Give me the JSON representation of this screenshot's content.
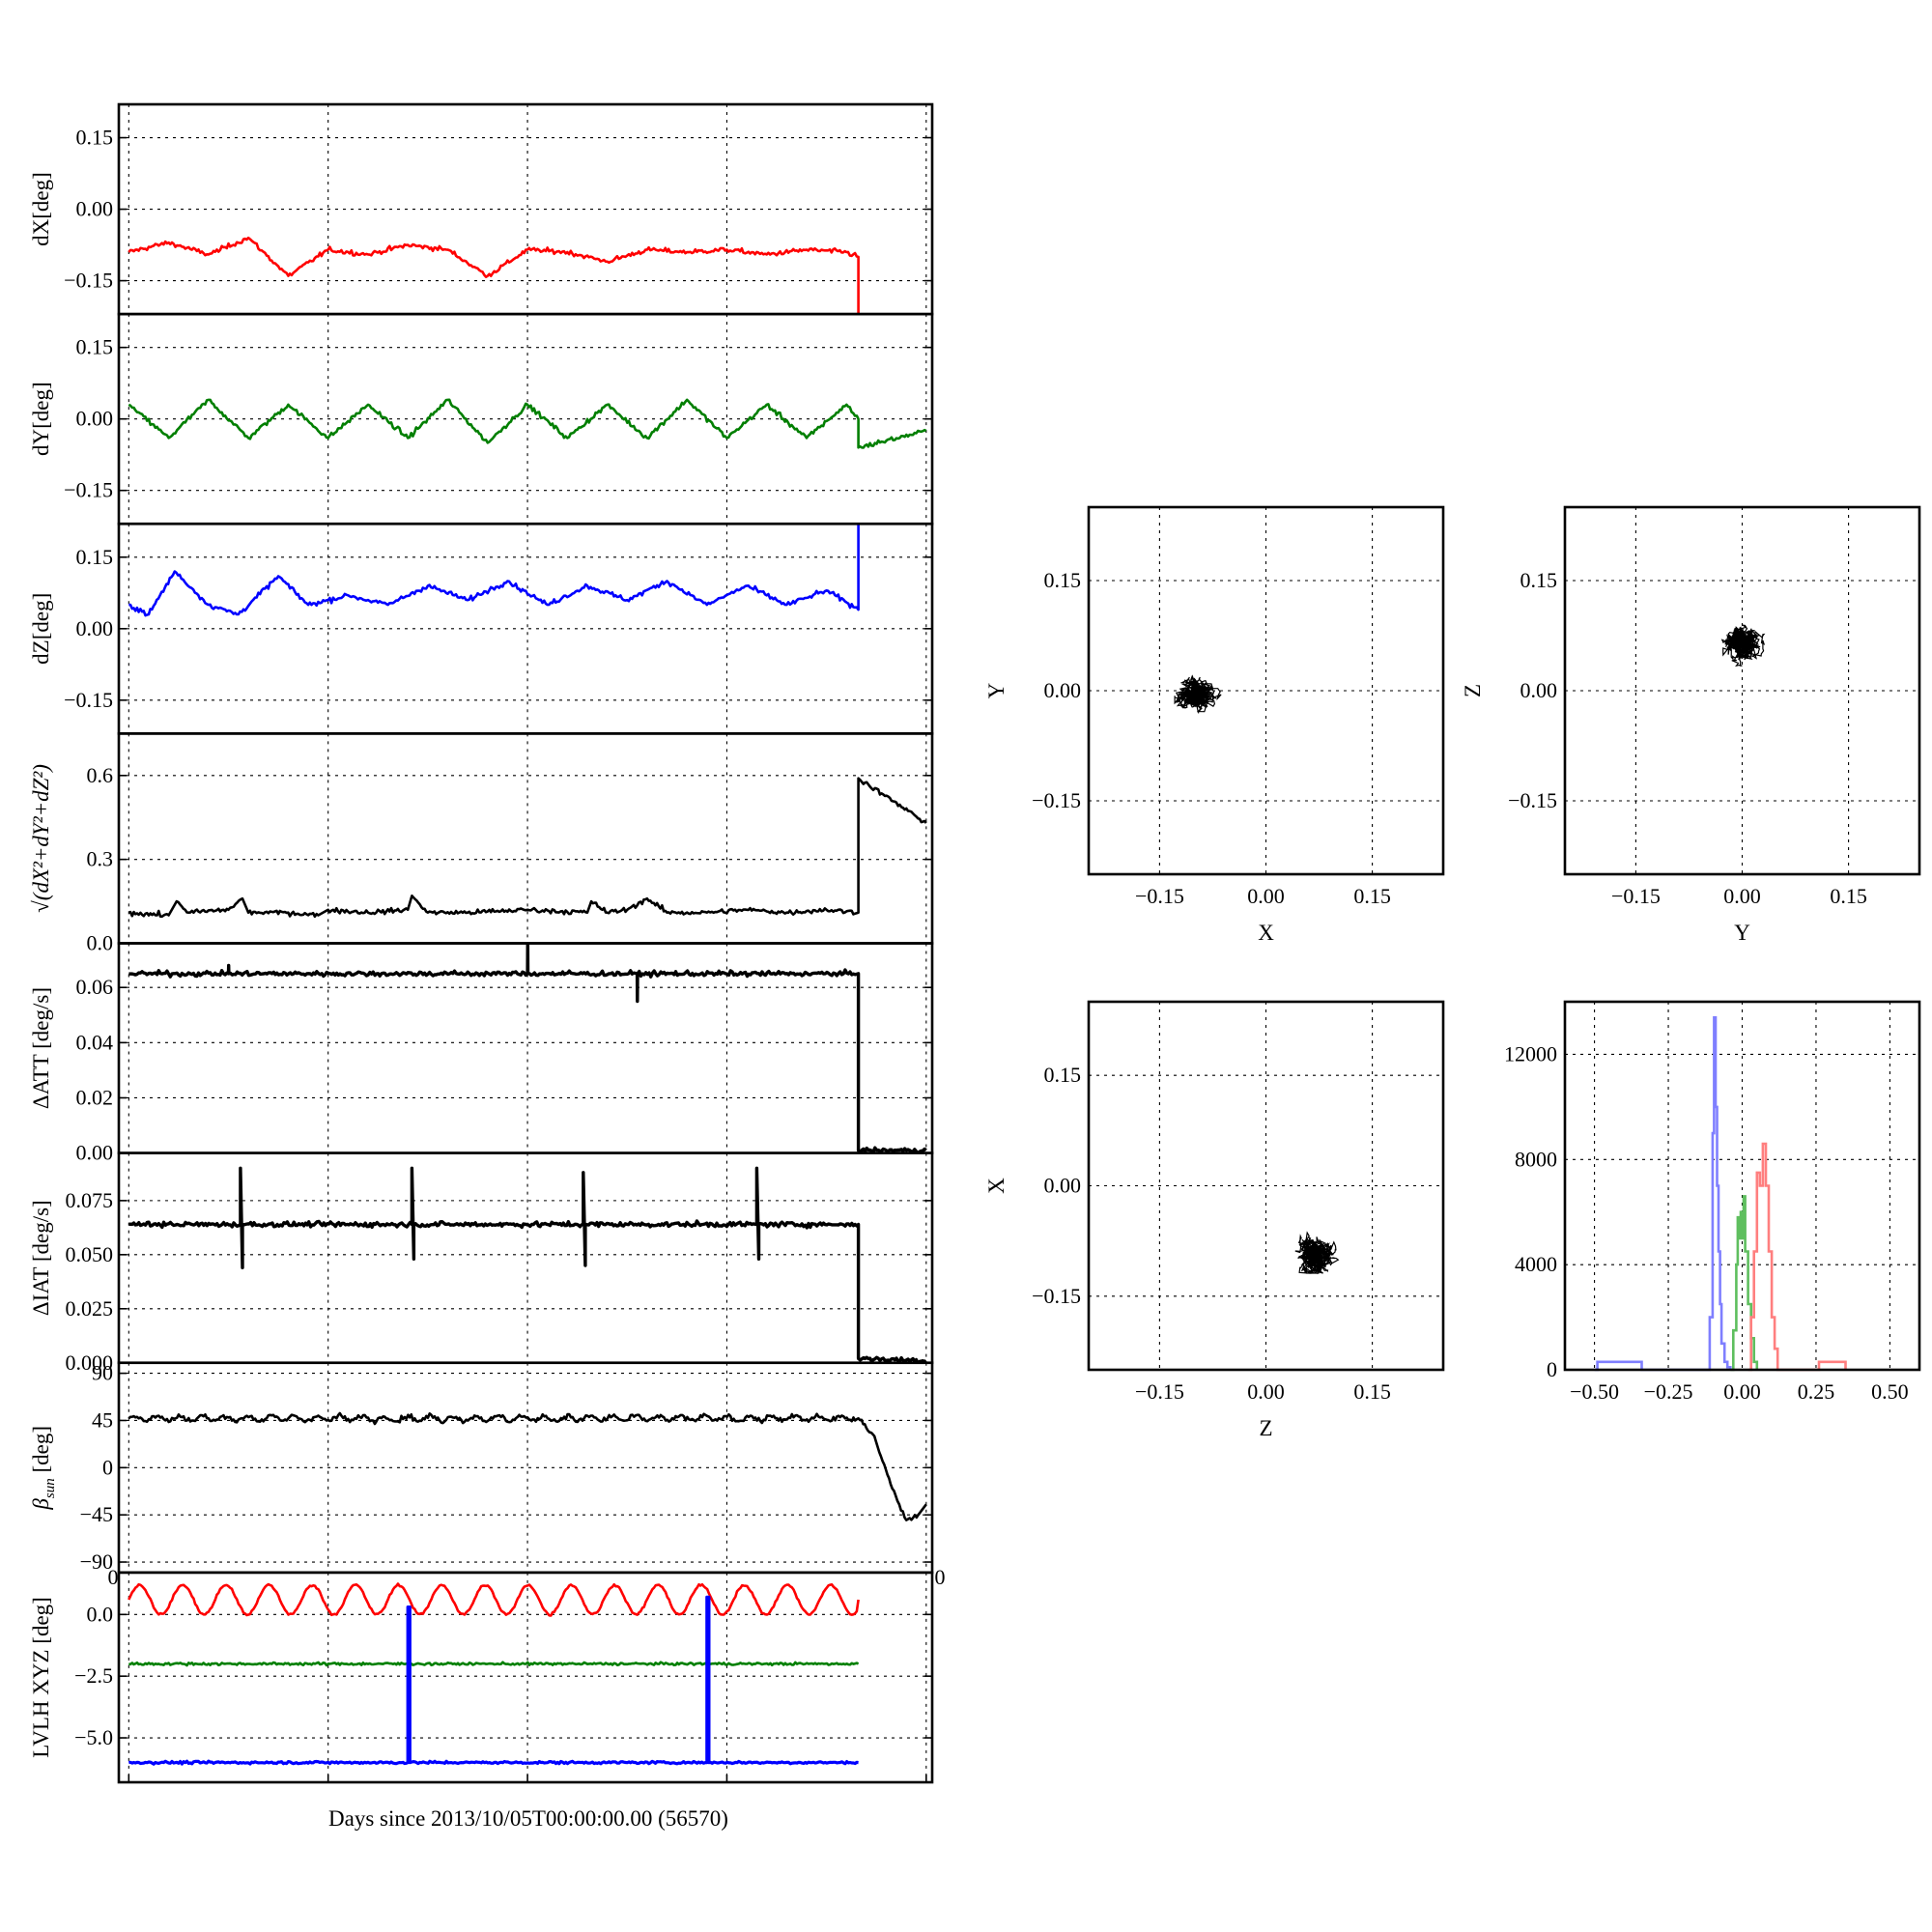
{
  "chart_data": {
    "figure": {
      "type": "multi-panel",
      "xlabel": "Days since 2013/10/05T00:00:00.00 (56570)"
    },
    "timeseries": [
      {
        "id": "dx",
        "type": "line",
        "ylabel": "dX[deg]",
        "ylim": [
          -0.22,
          0.22
        ],
        "yticks": [
          0.15,
          0.0,
          -0.15
        ],
        "ytick_labels": [
          "0.15",
          "0.00",
          "−0.15"
        ],
        "series": [
          {
            "color": "#ff0000",
            "t": [
              0,
              2,
              4,
              6,
              8,
              10,
              12,
              14,
              16,
              18,
              20,
              22,
              24,
              26,
              28,
              30,
              32,
              34,
              36,
              36.6,
              36.6
            ],
            "y": [
              -0.09,
              -0.07,
              -0.095,
              -0.06,
              -0.14,
              -0.085,
              -0.095,
              -0.075,
              -0.085,
              -0.14,
              -0.085,
              -0.09,
              -0.11,
              -0.085,
              -0.09,
              -0.085,
              -0.095,
              -0.085,
              -0.09,
              -0.1,
              -0.22
            ]
          }
        ]
      },
      {
        "id": "dy",
        "type": "line",
        "ylabel": "dY[deg]",
        "ylim": [
          -0.22,
          0.22
        ],
        "yticks": [
          0.15,
          0.0,
          -0.15
        ],
        "ytick_labels": [
          "0.15",
          "0.00",
          "−0.15"
        ],
        "series": [
          {
            "color": "#007f00",
            "t": [
              0,
              2,
              4,
              6,
              8,
              10,
              12,
              14,
              16,
              18,
              20,
              22,
              24,
              26,
              28,
              30,
              32,
              34,
              36,
              36.6,
              36.6,
              40
            ],
            "y": [
              0.03,
              -0.04,
              0.04,
              -0.04,
              0.03,
              -0.04,
              0.03,
              -0.04,
              0.04,
              -0.05,
              0.03,
              -0.04,
              0.03,
              -0.04,
              0.04,
              -0.04,
              0.03,
              -0.04,
              0.03,
              0.0,
              -0.06,
              -0.025
            ]
          }
        ]
      },
      {
        "id": "dz",
        "type": "line",
        "ylabel": "dZ[deg]",
        "ylim": [
          -0.22,
          0.22
        ],
        "yticks": [
          0.15,
          0.0,
          -0.15
        ],
        "ytick_labels": [
          "0.15",
          "0.00",
          "−0.15"
        ],
        "series": [
          {
            "color": "#0000ff",
            "t": [
              0,
              1,
              2.3,
              4,
              5.5,
              7.5,
              9,
              11,
              13,
              15,
              17,
              19,
              21,
              23,
              25,
              27,
              29,
              31,
              33,
              35,
              36.6,
              36.6
            ],
            "y": [
              0.05,
              0.03,
              0.12,
              0.05,
              0.03,
              0.11,
              0.05,
              0.07,
              0.05,
              0.09,
              0.06,
              0.1,
              0.05,
              0.09,
              0.06,
              0.1,
              0.05,
              0.09,
              0.05,
              0.08,
              0.04,
              0.22
            ]
          }
        ]
      },
      {
        "id": "dr",
        "type": "line",
        "ylabel": "√(dX²+dY²+dZ²)",
        "ylim": [
          0.0,
          0.75
        ],
        "yticks": [
          0.6,
          0.3,
          0.0
        ],
        "ytick_labels": [
          "0.6",
          "0.3",
          "0.0"
        ],
        "series": [
          {
            "color": "#000000",
            "t": [
              0,
              2,
              2.4,
              3,
              5,
              5.7,
              6,
              8,
              9.5,
              10,
              12,
              14,
              14.2,
              15,
              17,
              20,
              23,
              23.2,
              24,
              25,
              26,
              27,
              29,
              31,
              33,
              35,
              36.6,
              36.6,
              40
            ],
            "y": [
              0.11,
              0.1,
              0.15,
              0.11,
              0.12,
              0.16,
              0.11,
              0.11,
              0.1,
              0.12,
              0.11,
              0.12,
              0.17,
              0.11,
              0.11,
              0.12,
              0.11,
              0.15,
              0.11,
              0.12,
              0.16,
              0.11,
              0.11,
              0.12,
              0.11,
              0.12,
              0.11,
              0.59,
              0.43
            ]
          }
        ]
      },
      {
        "id": "datt",
        "type": "line",
        "ylabel": "ΔATT [deg/s]",
        "ylim": [
          0.0,
          0.076
        ],
        "yticks": [
          0.06,
          0.04,
          0.02,
          0.0
        ],
        "ytick_labels": [
          "0.06",
          "0.04",
          "0.02",
          "0.00"
        ],
        "series": [
          {
            "color": "#000000",
            "t": [
              0,
              5,
              5.01,
              5.02,
              20,
              20.01,
              20.02,
              25.5,
              25.51,
              25.52,
              36.6,
              36.6,
              40
            ],
            "y": [
              0.065,
              0.065,
              0.068,
              0.065,
              0.065,
              0.078,
              0.065,
              0.065,
              0.055,
              0.065,
              0.065,
              0.001,
              0.001
            ]
          }
        ]
      },
      {
        "id": "diat",
        "type": "line",
        "ylabel": "ΔIAT [deg/s]",
        "ylim": [
          0.0,
          0.097
        ],
        "yticks": [
          0.075,
          0.05,
          0.025,
          0.0
        ],
        "ytick_labels": [
          "0.075",
          "0.050",
          "0.025",
          "0.000"
        ],
        "series": [
          {
            "color": "#000000",
            "t": [
              0,
              5.6,
              5.6,
              5.7,
              5.7,
              14.2,
              14.2,
              14.3,
              14.3,
              22.8,
              22.8,
              22.9,
              22.9,
              31.5,
              31.5,
              31.6,
              31.6,
              36.6,
              36.6,
              40
            ],
            "y": [
              0.064,
              0.064,
              0.09,
              0.044,
              0.064,
              0.064,
              0.09,
              0.048,
              0.064,
              0.064,
              0.088,
              0.045,
              0.064,
              0.064,
              0.09,
              0.048,
              0.064,
              0.064,
              0.002,
              0.001
            ]
          }
        ]
      },
      {
        "id": "beta",
        "type": "line",
        "ylabel": "βsun [deg]",
        "ylim": [
          -100,
          100
        ],
        "yticks": [
          90,
          45,
          0,
          -45,
          -90
        ],
        "ytick_labels": [
          "90",
          "45",
          "0",
          "−45",
          "−90"
        ],
        "series": [
          {
            "color": "#000000",
            "t": [
              0,
              36.6,
              37.4,
              38.3,
              39.0,
              39.6,
              40
            ],
            "y": [
              47,
              47,
              30,
              -20,
              -50,
              -45,
              -35
            ]
          }
        ]
      },
      {
        "id": "lvlh",
        "type": "line",
        "ylabel": "LVLH XYZ [deg]",
        "ylim": [
          -6.8,
          1.7
        ],
        "yticks": [
          0.0,
          -2.5,
          -5.0
        ],
        "ytick_labels": [
          "0.0",
          "−2.5",
          "−5.0"
        ],
        "xtick_label_left": "0",
        "xtick_label_right": "0",
        "series": [
          {
            "color": "#ff0000",
            "t": [
              0,
              36.6
            ],
            "y": [
              0.6,
              0.6
            ]
          },
          {
            "color": "#007f00",
            "t": [
              0,
              36.6
            ],
            "y": [
              -2.0,
              -2.0
            ]
          },
          {
            "color": "#0000ff",
            "t": [
              0,
              14.0,
              14.0,
              14.1,
              14.1,
              29.0,
              29.0,
              29.1,
              29.1,
              36.6
            ],
            "y": [
              -6.0,
              -6.0,
              0.3,
              0.3,
              -6.0,
              -6.0,
              0.7,
              0.7,
              -6.0,
              -6.0
            ]
          }
        ]
      }
    ],
    "scatter": [
      {
        "id": "xy",
        "type": "scatter",
        "xlabel": "X",
        "ylabel": "Y",
        "xlim": [
          -0.25,
          0.25
        ],
        "ylim": [
          -0.25,
          0.25
        ],
        "ticks": [
          -0.15,
          0.0,
          0.15
        ],
        "tick_labels": [
          "−0.15",
          "0.00",
          "0.15"
        ],
        "center": [
          -0.095,
          -0.005
        ],
        "spread": [
          0.014,
          0.022
        ]
      },
      {
        "id": "yz",
        "type": "scatter",
        "xlabel": "Y",
        "ylabel": "Z",
        "xlim": [
          -0.25,
          0.25
        ],
        "ylim": [
          -0.25,
          0.25
        ],
        "ticks": [
          -0.15,
          0.0,
          0.15
        ],
        "tick_labels": [
          "−0.15",
          "0.00",
          "0.15"
        ],
        "center": [
          0.0,
          0.07
        ],
        "spread": [
          0.025,
          0.015
        ]
      },
      {
        "id": "zx",
        "type": "scatter",
        "xlabel": "Z",
        "ylabel": "X",
        "xlim": [
          -0.25,
          0.25
        ],
        "ylim": [
          -0.25,
          0.25
        ],
        "ticks": [
          -0.15,
          0.0,
          0.15
        ],
        "tick_labels": [
          "−0.15",
          "0.00",
          "0.15"
        ],
        "center": [
          0.07,
          -0.09
        ],
        "spread": [
          0.018,
          0.012
        ]
      }
    ],
    "histogram": {
      "id": "hist",
      "type": "area",
      "xlim": [
        -0.6,
        0.6
      ],
      "ylim": [
        0,
        14000
      ],
      "xticks": [
        -0.5,
        -0.25,
        0.0,
        0.25,
        0.5
      ],
      "xtick_labels": [
        "−0.50",
        "−0.25",
        "0.00",
        "0.25",
        "0.50"
      ],
      "yticks": [
        12000,
        8000,
        4000,
        0
      ],
      "ytick_labels": [
        "12000",
        "8000",
        "4000",
        "0"
      ],
      "series": [
        {
          "color": "#7f7fff",
          "x": [
            -0.5,
            -0.49,
            -0.35,
            -0.34,
            -0.12,
            -0.11,
            -0.1,
            -0.095,
            -0.09,
            -0.085,
            -0.08,
            -0.075,
            -0.07,
            -0.06,
            -0.05,
            -0.04
          ],
          "y": [
            0,
            300,
            300,
            0,
            0,
            2000,
            9000,
            13400,
            10000,
            7000,
            4500,
            2500,
            1000,
            300,
            100,
            0
          ]
        },
        {
          "color": "#5fbf5f",
          "x": [
            -0.04,
            -0.03,
            -0.02,
            -0.015,
            -0.01,
            -0.005,
            0.0,
            0.005,
            0.01,
            0.02,
            0.03,
            0.04,
            0.05
          ],
          "y": [
            0,
            1500,
            4000,
            5800,
            5000,
            6000,
            5000,
            6600,
            4500,
            2500,
            1200,
            300,
            0
          ]
        },
        {
          "color": "#ff7f7f",
          "x": [
            0.02,
            0.03,
            0.04,
            0.05,
            0.06,
            0.07,
            0.08,
            0.09,
            0.1,
            0.11,
            0.12,
            0.25,
            0.26,
            0.34,
            0.35
          ],
          "y": [
            0,
            2000,
            4500,
            7500,
            7000,
            8600,
            7000,
            4500,
            2000,
            800,
            0,
            0,
            300,
            300,
            0
          ]
        }
      ]
    }
  }
}
